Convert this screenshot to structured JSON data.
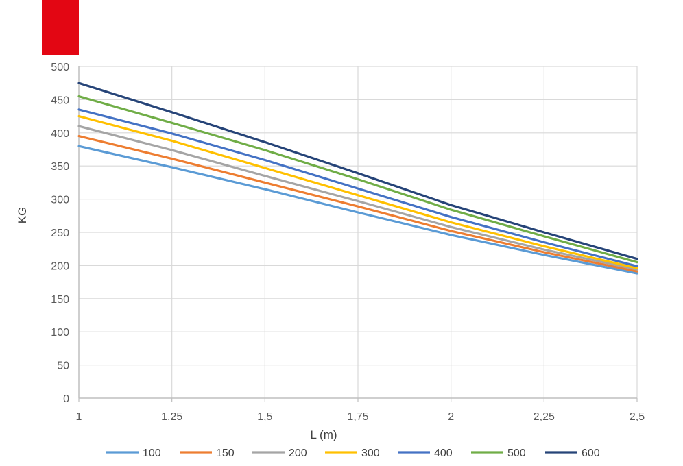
{
  "brand": {
    "color": "#e30613"
  },
  "chart_data": {
    "type": "line",
    "title": "",
    "xlabel": "L (m)",
    "ylabel": "KG",
    "xlim": [
      1,
      2.5
    ],
    "ylim": [
      0,
      500
    ],
    "x_ticks": [
      "1",
      "1,25",
      "1,5",
      "1,75",
      "2",
      "2,25",
      "2,5"
    ],
    "y_ticks": [
      "0",
      "50",
      "100",
      "150",
      "200",
      "250",
      "300",
      "350",
      "400",
      "450",
      "500"
    ],
    "grid": true,
    "legend_position": "bottom",
    "x": [
      1,
      1.25,
      1.5,
      1.75,
      2,
      2.25,
      2.5
    ],
    "series": [
      {
        "name": "100",
        "color": "#5b9bd5",
        "values": [
          380,
          348,
          315,
          280,
          246,
          216,
          188
        ]
      },
      {
        "name": "150",
        "color": "#ed7d31",
        "values": [
          395,
          361,
          325,
          289,
          252,
          220,
          191
        ]
      },
      {
        "name": "200",
        "color": "#a5a5a5",
        "values": [
          410,
          374,
          335,
          297,
          258,
          224,
          194
        ]
      },
      {
        "name": "300",
        "color": "#ffc000",
        "values": [
          425,
          388,
          347,
          306,
          265,
          229,
          196
        ]
      },
      {
        "name": "400",
        "color": "#4472c4",
        "values": [
          435,
          399,
          359,
          316,
          273,
          235,
          199
        ]
      },
      {
        "name": "500",
        "color": "#70ad47",
        "values": [
          455,
          415,
          374,
          330,
          284,
          244,
          205
        ]
      },
      {
        "name": "600",
        "color": "#264478",
        "values": [
          475,
          431,
          386,
          339,
          291,
          250,
          210
        ]
      }
    ]
  }
}
